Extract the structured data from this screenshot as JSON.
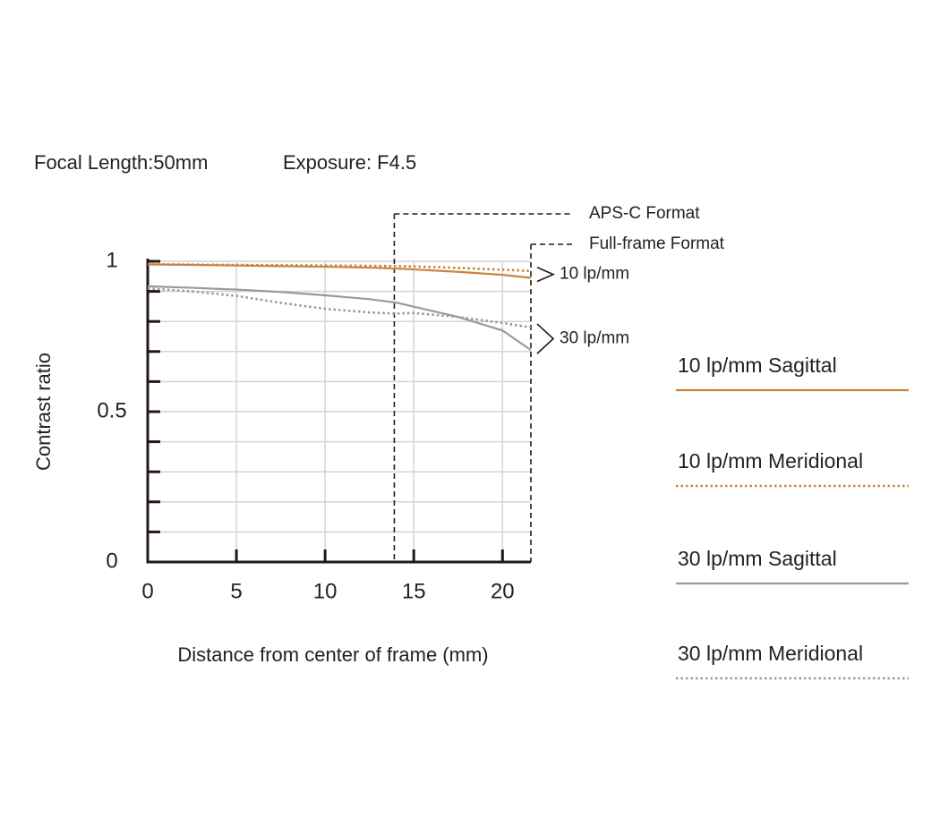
{
  "chart_data": {
    "type": "line",
    "title": "Focal Length:50mm",
    "subtitle": "Exposure: F4.5",
    "x_label": "Distance from center of frame (mm)",
    "y_label": "Contrast ratio",
    "x": [
      0,
      2.5,
      5,
      7.5,
      10,
      12.5,
      14,
      15,
      17.5,
      20,
      21.6
    ],
    "series": [
      {
        "name": "10 lp/mm Sagittal",
        "color": "#c8843f",
        "style": "solid",
        "values": [
          0.99,
          0.988,
          0.986,
          0.984,
          0.982,
          0.979,
          0.976,
          0.973,
          0.965,
          0.955,
          0.945
        ]
      },
      {
        "name": "10 lp/mm Meridional",
        "color": "#c8843f",
        "style": "dotted",
        "values": [
          0.99,
          0.989,
          0.988,
          0.987,
          0.986,
          0.985,
          0.984,
          0.983,
          0.978,
          0.972,
          0.968
        ]
      },
      {
        "name": "30 lp/mm Sagittal",
        "color": "#9a9a9a",
        "style": "solid",
        "values": [
          0.917,
          0.912,
          0.906,
          0.898,
          0.887,
          0.874,
          0.863,
          0.849,
          0.815,
          0.77,
          0.705
        ]
      },
      {
        "name": "30 lp/mm Meridional",
        "color": "#9a9a9a",
        "style": "dotted",
        "values": [
          0.91,
          0.9,
          0.885,
          0.862,
          0.842,
          0.83,
          0.826,
          0.828,
          0.815,
          0.795,
          0.78
        ]
      }
    ],
    "xlim": [
      0,
      21.6
    ],
    "ylim": [
      0,
      1
    ],
    "xticks": [
      0,
      5,
      10,
      15,
      20
    ],
    "yticks": [
      0,
      0.5,
      1
    ],
    "yminor_ticks": [
      0.1,
      0.2,
      0.3,
      0.4,
      0.6,
      0.7,
      0.8,
      0.9
    ],
    "grid": true,
    "format_lines": [
      {
        "label": "APS-C Format",
        "x": 13.9
      },
      {
        "label": "Full-frame Format",
        "x": 21.6
      }
    ],
    "group_labels": [
      "10 lp/mm",
      "30 lp/mm"
    ],
    "legend": "right"
  }
}
